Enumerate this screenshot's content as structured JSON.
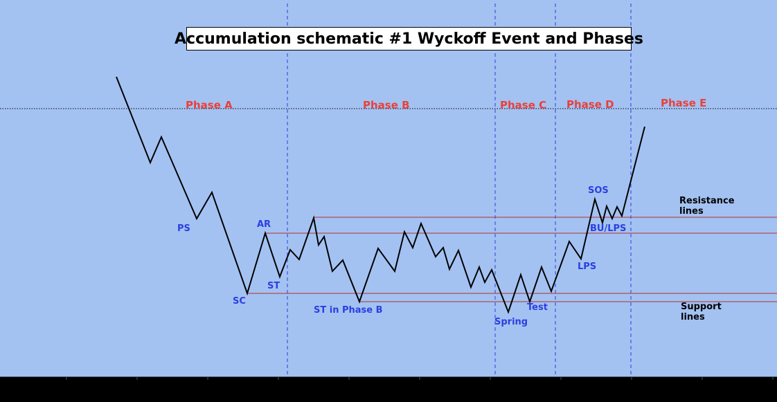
{
  "title": "Accumulation schematic #1 Wyckoff Event and Phases",
  "colors": {
    "background": "#a3c2f2",
    "phase_label": "#e8413a",
    "event_label": "#2b3fe0",
    "level_line": "#b03030",
    "price_path": "#000000",
    "divider": "#2a3fd6"
  },
  "phases": [
    {
      "label": "Phase A"
    },
    {
      "label": "Phase B"
    },
    {
      "label": "Phase C"
    },
    {
      "label": "Phase D"
    },
    {
      "label": "Phase E"
    }
  ],
  "events": {
    "ps": "PS",
    "sc": "SC",
    "ar": "AR",
    "st": "ST",
    "st_phase_b": "ST in Phase B",
    "spring": "Spring",
    "test": "Test",
    "lps": "LPS",
    "sos": "SOS",
    "bu_lps": "BU/LPS"
  },
  "notes": {
    "resistance_line1": "Resistance",
    "resistance_line2": "lines",
    "support_line1": "Support",
    "support_line2": "lines"
  }
}
